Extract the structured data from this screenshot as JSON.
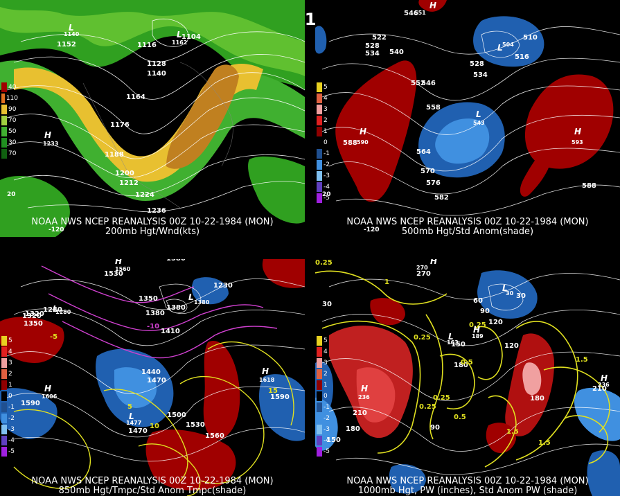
{
  "header": {
    "title": "00Z 10-22-1984 (MON)"
  },
  "panels": [
    {
      "caption1": "NOAA NWS NCEP REANALYSIS 00Z 10-22-1984 (MON)",
      "caption2": "200mb Hgt/Wnd(kts)",
      "legend": [
        {
          "color": "#a00000",
          "label": "40"
        },
        {
          "color": "#e07020",
          "label": "110"
        },
        {
          "color": "#e8c030",
          "label": "90"
        },
        {
          "color": "#a0d040",
          "label": "70"
        },
        {
          "color": "#40b030",
          "label": "50"
        },
        {
          "color": "#209020",
          "label": "30"
        },
        {
          "color": "#106010",
          "label": "70"
        }
      ],
      "contour_labels": [
        "1152",
        "1116",
        "1104",
        "1128",
        "1140",
        "1164",
        "1176",
        "1188",
        "1200",
        "1212",
        "1224",
        "1236"
      ],
      "centers": [
        {
          "type": "L",
          "value": "1162"
        },
        {
          "type": "L",
          "value": "1140"
        },
        {
          "type": "H",
          "value": "1233"
        }
      ],
      "axis_labels": [
        "-120",
        "20"
      ]
    },
    {
      "caption1": "NOAA NWS NCEP REANALYSIS 00Z 10-22-1984 (MON)",
      "caption2": "500mb Hgt/Std Anom(shade)",
      "legend": [
        {
          "color": "#e8d020",
          "label": "5"
        },
        {
          "color": "#e06040",
          "label": "4"
        },
        {
          "color": "#f0a0a0",
          "label": "3"
        },
        {
          "color": "#e02020",
          "label": "2"
        },
        {
          "color": "#900000",
          "label": "1"
        },
        {
          "color": "#000000",
          "label": "0"
        },
        {
          "color": "#205090",
          "label": "-1"
        },
        {
          "color": "#4090e0",
          "label": "-2"
        },
        {
          "color": "#80c0f0",
          "label": "-3"
        },
        {
          "color": "#6040c0",
          "label": "-4"
        },
        {
          "color": "#a020e0",
          "label": "-5"
        }
      ],
      "contour_labels": [
        "546",
        "510",
        "522",
        "528",
        "534",
        "540",
        "516",
        "528",
        "534",
        "552",
        "546",
        "558",
        "564",
        "570",
        "576",
        "582",
        "588",
        "588"
      ],
      "centers": [
        {
          "type": "H",
          "value": "551"
        },
        {
          "type": "L",
          "value": "504"
        },
        {
          "type": "L",
          "value": "543"
        },
        {
          "type": "H",
          "value": "590"
        },
        {
          "type": "H",
          "value": "593"
        }
      ],
      "axis_labels": [
        "-120",
        "20"
      ]
    },
    {
      "caption1": "NOAA NWS NCEP REANALYSIS 00Z 10-22-1984 (MON)",
      "caption2": "850mb Hgt/Tmpc/Std Anom Tmpc(shade)",
      "legend": [
        {
          "color": "#e8d020",
          "label": "5"
        },
        {
          "color": "#e02020",
          "label": "4"
        },
        {
          "color": "#f0a0a0",
          "label": "3"
        },
        {
          "color": "#e06040",
          "label": "2"
        },
        {
          "color": "#900000",
          "label": "1"
        },
        {
          "color": "#000000",
          "label": "0"
        },
        {
          "color": "#205090",
          "label": "-1"
        },
        {
          "color": "#4090e0",
          "label": "-2"
        },
        {
          "color": "#80c0f0",
          "label": "-3"
        },
        {
          "color": "#6040c0",
          "label": "-4"
        },
        {
          "color": "#a020e0",
          "label": "-5"
        }
      ],
      "contour_labels": [
        "1530",
        "1580",
        "1320",
        "1280",
        "1350",
        "1380",
        "1380",
        "1410",
        "1230",
        "1440",
        "1470",
        "1590",
        "1500",
        "1530",
        "1560",
        "1590",
        "1470",
        "1320",
        "1350"
      ],
      "temp_labels": [
        "-5",
        "-10",
        "5",
        "10",
        "15"
      ],
      "centers": [
        {
          "type": "H",
          "value": "1560"
        },
        {
          "type": "L",
          "value": "1280"
        },
        {
          "type": "L",
          "value": "1380"
        },
        {
          "type": "H",
          "value": "1618"
        },
        {
          "type": "H",
          "value": "1606"
        },
        {
          "type": "L",
          "value": "1477"
        }
      ]
    },
    {
      "caption1": "NOAA NWS NCEP REANALYSIS 00Z 10-22-1984 (MON)",
      "caption2": "1000mb Hgt, PW (inches), Std Anom PW (shade)",
      "legend": [
        {
          "color": "#e8d020",
          "label": "5"
        },
        {
          "color": "#e02020",
          "label": "4"
        },
        {
          "color": "#f0a0a0",
          "label": "3"
        },
        {
          "color": "#e06040",
          "label": "2"
        },
        {
          "color": "#900000",
          "label": "1"
        },
        {
          "color": "#000000",
          "label": "0"
        },
        {
          "color": "#205090",
          "label": "-1"
        },
        {
          "color": "#4090e0",
          "label": "-2"
        },
        {
          "color": "#80c0f0",
          "label": "-3"
        },
        {
          "color": "#6040c0",
          "label": "-4"
        },
        {
          "color": "#a020e0",
          "label": "-5"
        }
      ],
      "contour_labels": [
        "270",
        "30",
        "60",
        "90",
        "120",
        "150",
        "180",
        "210",
        "180",
        "150",
        "120",
        "30",
        "90",
        "210",
        "180"
      ],
      "pw_labels": [
        "0.25",
        "0.25",
        "0.25",
        "0.25",
        "0.5",
        "0.5",
        "0.25",
        "0.5",
        "1.5",
        "1.5",
        "1.5",
        "1"
      ],
      "centers": [
        {
          "type": "H",
          "value": "270"
        },
        {
          "type": "L",
          "value": "30"
        },
        {
          "type": "L",
          "value": "163"
        },
        {
          "type": "H",
          "value": "189"
        },
        {
          "type": "H",
          "value": "236"
        },
        {
          "type": "H",
          "value": "236"
        }
      ]
    }
  ]
}
